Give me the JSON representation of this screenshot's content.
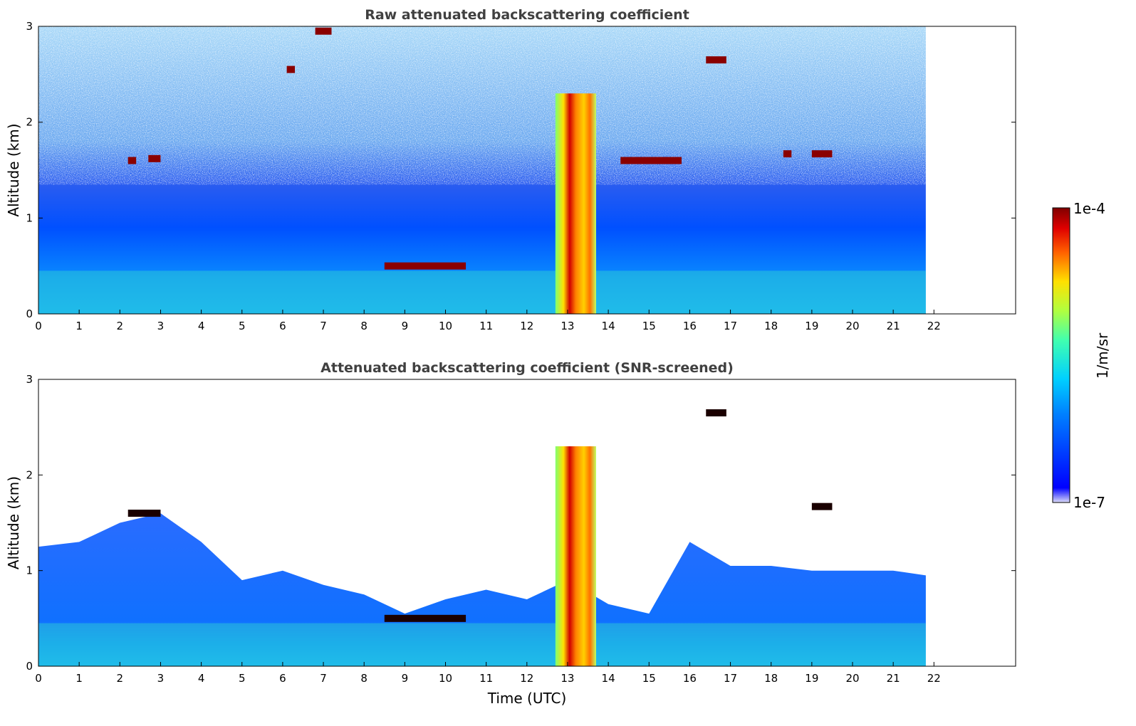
{
  "chart_data": [
    {
      "type": "heatmap",
      "title": "Raw attenuated backscattering coefficient",
      "xlabel": "",
      "ylabel": "Altitude (km)",
      "x_ticks": [
        "0",
        "1",
        "2",
        "3",
        "4",
        "5",
        "6",
        "7",
        "8",
        "9",
        "10",
        "11",
        "12",
        "13",
        "14",
        "15",
        "16",
        "17",
        "18",
        "19",
        "20",
        "21",
        "22"
      ],
      "y_ticks": [
        "0",
        "1",
        "2",
        "3"
      ],
      "xlim": [
        0,
        24
      ],
      "ylim": [
        0,
        3
      ],
      "data_time_end": 21.8,
      "screened": false,
      "features": [
        {
          "kind": "boundary_layer",
          "time_range": [
            0,
            21.8
          ],
          "altitude": 0.45
        },
        {
          "kind": "cloud",
          "time_range": [
            2.2,
            2.4
          ],
          "altitude": 1.6
        },
        {
          "kind": "cloud",
          "time_range": [
            2.7,
            3.0
          ],
          "altitude": 1.62
        },
        {
          "kind": "cloud",
          "time_range": [
            6.1,
            6.3
          ],
          "altitude": 2.55
        },
        {
          "kind": "cloud",
          "time_range": [
            6.8,
            7.2
          ],
          "altitude": 2.95
        },
        {
          "kind": "cloud",
          "time_range": [
            8.5,
            10.5
          ],
          "altitude": 0.5
        },
        {
          "kind": "precipitation",
          "time_range": [
            12.7,
            13.7
          ],
          "altitude": 2.3
        },
        {
          "kind": "cloud",
          "time_range": [
            14.3,
            15.8
          ],
          "altitude": 1.6
        },
        {
          "kind": "cloud",
          "time_range": [
            16.4,
            16.9
          ],
          "altitude": 2.65
        },
        {
          "kind": "cloud",
          "time_range": [
            18.3,
            18.5
          ],
          "altitude": 1.67
        },
        {
          "kind": "cloud",
          "time_range": [
            19.0,
            19.5
          ],
          "altitude": 1.67
        }
      ]
    },
    {
      "type": "heatmap",
      "title": "Attenuated backscattering coefficient (SNR-screened)",
      "xlabel": "Time (UTC)",
      "ylabel": "Altitude (km)",
      "x_ticks": [
        "0",
        "1",
        "2",
        "3",
        "4",
        "5",
        "6",
        "7",
        "8",
        "9",
        "10",
        "11",
        "12",
        "13",
        "14",
        "15",
        "16",
        "17",
        "18",
        "19",
        "20",
        "21",
        "22"
      ],
      "y_ticks": [
        "0",
        "1",
        "2",
        "3"
      ],
      "xlim": [
        0,
        24
      ],
      "ylim": [
        0,
        3
      ],
      "data_time_end": 21.8,
      "screened": true,
      "features": [
        {
          "kind": "boundary_layer",
          "time_range": [
            0,
            21.8
          ],
          "altitude": 0.45
        },
        {
          "kind": "cloud",
          "time_range": [
            2.2,
            3.0
          ],
          "altitude": 1.6
        },
        {
          "kind": "cloud",
          "time_range": [
            8.5,
            10.5
          ],
          "altitude": 0.5
        },
        {
          "kind": "precipitation",
          "time_range": [
            12.7,
            13.7
          ],
          "altitude": 2.3
        },
        {
          "kind": "cloud",
          "time_range": [
            16.4,
            16.9
          ],
          "altitude": 2.65
        },
        {
          "kind": "cloud",
          "time_range": [
            19.0,
            19.5
          ],
          "altitude": 1.67
        }
      ]
    }
  ],
  "colorbar": {
    "label": "1/m/sr",
    "max_label": "1e-4",
    "min_label": "1e-7",
    "colormap": "jet",
    "scale": "log"
  },
  "colors": {
    "title": "#404040",
    "axis": "#000000",
    "background": "#ffffff",
    "cloud_dark": "#7a0000"
  }
}
